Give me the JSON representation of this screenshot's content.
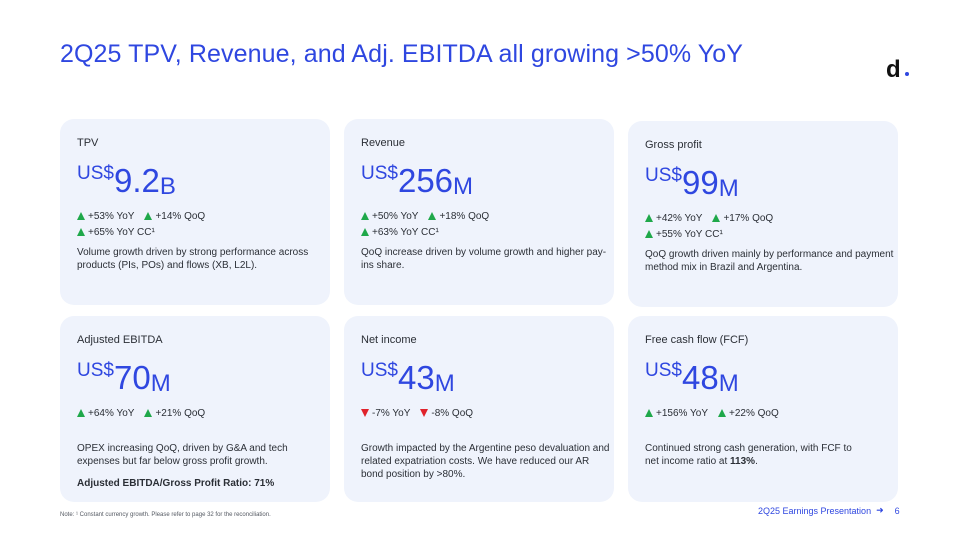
{
  "title": "2Q25 TPV, Revenue, and Adj. EBITDA all growing >50% YoY",
  "logo": "d",
  "cards": [
    {
      "label": "TPV",
      "currency": "US$",
      "value": "9.2",
      "unit": "B",
      "metrics": [
        {
          "dir": "up",
          "text": "+53% YoY"
        },
        {
          "dir": "up",
          "text": "+14% QoQ"
        },
        {
          "dir": "up",
          "text": "+65% YoY CC¹"
        }
      ],
      "description": "Volume growth driven by strong performance across products (PIs, POs) and flows (XB, L2L)."
    },
    {
      "label": "Revenue",
      "currency": "US$",
      "value": "256",
      "unit": "M",
      "metrics": [
        {
          "dir": "up",
          "text": "+50% YoY"
        },
        {
          "dir": "up",
          "text": "+18% QoQ"
        },
        {
          "dir": "up",
          "text": "+63% YoY CC¹"
        }
      ],
      "description": "QoQ increase driven by volume growth and higher pay-ins share."
    },
    {
      "label": "Gross profit",
      "currency": "US$",
      "value": "99",
      "unit": "M",
      "metrics": [
        {
          "dir": "up",
          "text": "+42% YoY"
        },
        {
          "dir": "up",
          "text": "+17% QoQ"
        },
        {
          "dir": "up",
          "text": "+55% YoY CC¹"
        }
      ],
      "description": "QoQ growth driven mainly by performance and payment method mix in Brazil and Argentina."
    },
    {
      "label": "Adjusted EBITDA",
      "currency": "US$",
      "value": "70",
      "unit": "M",
      "metrics": [
        {
          "dir": "up",
          "text": "+64% YoY"
        },
        {
          "dir": "up",
          "text": "+21% QoQ"
        }
      ],
      "description": "OPEX increasing QoQ, driven by G&A and tech expenses but far below gross profit growth.",
      "ratio": "Adjusted EBITDA/Gross Profit Ratio: 71%"
    },
    {
      "label": "Net income",
      "currency": "US$",
      "value": "43",
      "unit": "M",
      "metrics": [
        {
          "dir": "down",
          "text": "-7% YoY"
        },
        {
          "dir": "down",
          "text": "-8% QoQ"
        }
      ],
      "description": "Growth impacted by the Argentine peso devaluation and related expatriation costs. We have reduced our AR bond position by >80%."
    },
    {
      "label": "Free cash flow (FCF)",
      "currency": "US$",
      "value": "48",
      "unit": "M",
      "metrics": [
        {
          "dir": "up",
          "text": "+156% YoY"
        },
        {
          "dir": "up",
          "text": "+22% QoQ"
        }
      ],
      "description_prefix": "Continued strong cash generation, with FCF to net income ratio at ",
      "description_bold": "113%",
      "description_suffix": "."
    }
  ],
  "note": "Note: ¹ Constant currency growth. Please refer to page 32 for the reconciliation.",
  "footer": {
    "label": "2Q25 Earnings Presentation",
    "arrow": "➜",
    "page": "6"
  }
}
